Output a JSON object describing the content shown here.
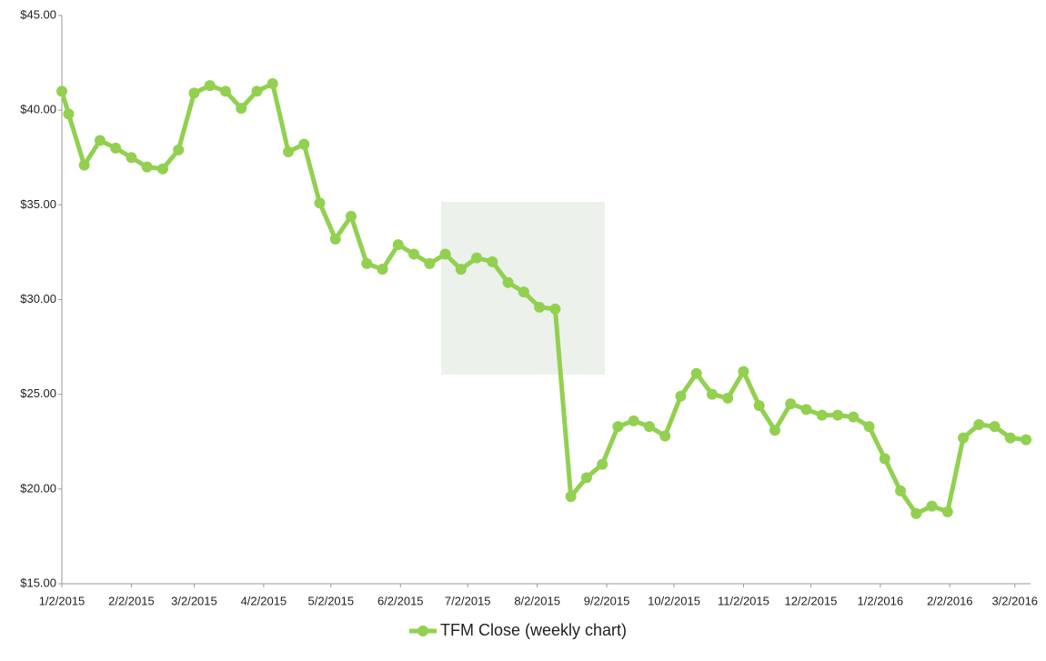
{
  "chart_data": {
    "type": "line",
    "x": [
      "1/2/2015",
      "1/5/2015",
      "1/12/2015",
      "1/19/2015",
      "1/26/2015",
      "2/2/2015",
      "2/9/2015",
      "2/16/2015",
      "2/23/2015",
      "3/2/2015",
      "3/9/2015",
      "3/16/2015",
      "3/23/2015",
      "3/30/2015",
      "4/6/2015",
      "4/13/2015",
      "4/20/2015",
      "4/27/2015",
      "5/4/2015",
      "5/11/2015",
      "5/18/2015",
      "5/25/2015",
      "6/1/2015",
      "6/8/2015",
      "6/15/2015",
      "6/22/2015",
      "6/29/2015",
      "7/6/2015",
      "7/13/2015",
      "7/20/2015",
      "7/27/2015",
      "8/3/2015",
      "8/10/2015",
      "8/17/2015",
      "8/24/2015",
      "8/31/2015",
      "9/7/2015",
      "9/14/2015",
      "9/21/2015",
      "9/28/2015",
      "10/5/2015",
      "10/12/2015",
      "10/19/2015",
      "10/26/2015",
      "11/2/2015",
      "11/9/2015",
      "11/16/2015",
      "11/23/2015",
      "11/30/2015",
      "12/7/2015",
      "12/14/2015",
      "12/21/2015",
      "12/28/2015",
      "1/4/2016",
      "1/11/2016",
      "1/18/2016",
      "1/25/2016",
      "2/1/2016",
      "2/8/2016",
      "2/15/2016",
      "2/22/2016",
      "2/29/2016",
      "3/7/2016"
    ],
    "series": [
      {
        "name": "TFM Close  (weekly chart)",
        "color": "#92d050",
        "values": [
          41.0,
          39.8,
          37.1,
          38.4,
          38.0,
          37.5,
          37.0,
          36.9,
          37.9,
          40.9,
          41.3,
          41.0,
          40.1,
          41.0,
          41.4,
          37.8,
          38.2,
          35.1,
          33.2,
          34.4,
          31.9,
          31.6,
          32.9,
          32.4,
          31.9,
          32.4,
          31.6,
          32.2,
          32.0,
          30.9,
          30.4,
          29.6,
          29.5,
          19.6,
          20.6,
          21.3,
          23.3,
          23.6,
          23.3,
          22.8,
          24.9,
          26.1,
          25.0,
          24.8,
          26.2,
          24.4,
          23.1,
          24.5,
          24.2,
          23.9,
          23.9,
          23.8,
          23.3,
          21.6,
          19.9,
          18.7,
          19.1,
          18.8,
          22.7,
          23.4,
          23.3,
          22.7,
          22.6
        ]
      }
    ],
    "xlim": [
      "1/2/2015",
      "3/9/2016"
    ],
    "xticks": [
      "1/2/2015",
      "2/2/2015",
      "3/2/2015",
      "4/2/2015",
      "5/2/2015",
      "6/2/2015",
      "7/2/2015",
      "8/2/2015",
      "9/2/2015",
      "10/2/2015",
      "11/2/2015",
      "12/2/2015",
      "1/2/2016",
      "2/2/2016",
      "3/2/2016"
    ],
    "ylim": [
      15,
      45
    ],
    "yticks": [
      {
        "value": 15,
        "label": "$15.00"
      },
      {
        "value": 20,
        "label": "$20.00"
      },
      {
        "value": 25,
        "label": "$25.00"
      },
      {
        "value": 30,
        "label": "$30.00"
      },
      {
        "value": 35,
        "label": "$35.00"
      },
      {
        "value": 40,
        "label": "$40.00"
      },
      {
        "value": 45,
        "label": "$45.00"
      }
    ],
    "legend": "bottom"
  }
}
